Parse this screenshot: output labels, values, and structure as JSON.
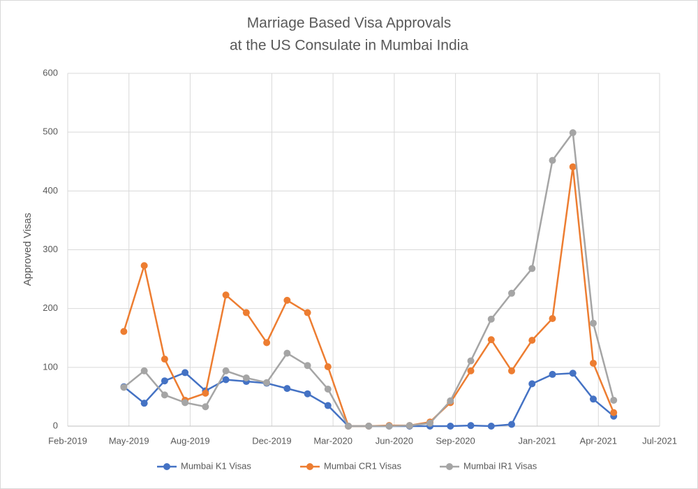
{
  "chart_data": {
    "type": "line",
    "title": [
      "Marriage Based Visa Approvals",
      "at the US Consulate in Mumbai India"
    ],
    "y_label": "Approved Visas",
    "x": [
      "2019-04",
      "2019-05",
      "2019-06",
      "2019-07",
      "2019-08",
      "2019-09",
      "2019-10",
      "2019-11",
      "2019-12",
      "2020-01",
      "2020-02",
      "2020-03",
      "2020-04",
      "2020-05",
      "2020-06",
      "2020-07",
      "2020-08",
      "2020-09",
      "2020-10",
      "2020-11",
      "2020-12",
      "2021-01",
      "2021-02",
      "2021-03",
      "2021-04"
    ],
    "series": [
      {
        "name": "Mumbai K1 Visas",
        "color": "#4472c4",
        "values": [
          67,
          39,
          77,
          91,
          60,
          79,
          76,
          73,
          64,
          55,
          35,
          0,
          0,
          0,
          0,
          0,
          0,
          1,
          0,
          3,
          72,
          88,
          90,
          46,
          17
        ]
      },
      {
        "name": "Mumbai CR1 Visas",
        "color": "#ed7d31",
        "values": [
          161,
          273,
          114,
          44,
          56,
          223,
          193,
          142,
          214,
          193,
          101,
          0,
          0,
          1,
          1,
          7,
          40,
          94,
          147,
          94,
          146,
          183,
          441,
          107,
          23
        ]
      },
      {
        "name": "Mumbai IR1 Visas",
        "color": "#a5a5a5",
        "values": [
          66,
          94,
          53,
          40,
          33,
          94,
          82,
          74,
          124,
          103,
          63,
          0,
          0,
          0,
          1,
          5,
          43,
          111,
          182,
          226,
          268,
          452,
          499,
          175,
          44
        ]
      }
    ],
    "xlim": [
      "2019-02",
      "2021-07"
    ],
    "xticks": [
      {
        "value": "2019-02",
        "label": "Feb-2019"
      },
      {
        "value": "2019-05",
        "label": "May-2019"
      },
      {
        "value": "2019-08",
        "label": "Aug-2019"
      },
      {
        "value": "2019-12",
        "label": "Dec-2019"
      },
      {
        "value": "2020-03",
        "label": "Mar-2020"
      },
      {
        "value": "2020-06",
        "label": "Jun-2020"
      },
      {
        "value": "2020-09",
        "label": "Sep-2020"
      },
      {
        "value": "2021-01",
        "label": "Jan-2021"
      },
      {
        "value": "2021-04",
        "label": "Apr-2021"
      },
      {
        "value": "2021-07",
        "label": "Jul-2021"
      }
    ],
    "ylim": [
      0,
      600
    ],
    "yticks": [
      0,
      100,
      200,
      300,
      400,
      500,
      600
    ],
    "grid": true,
    "legend": "bottom"
  }
}
